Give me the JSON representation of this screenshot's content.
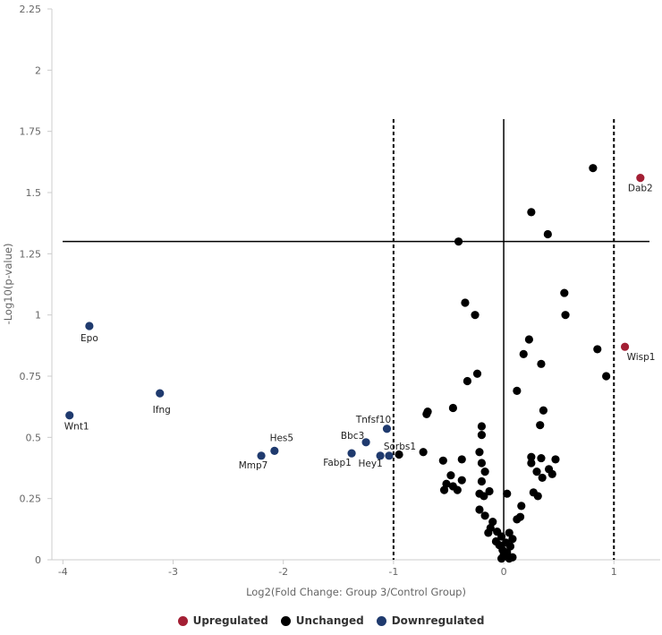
{
  "chart_data": {
    "type": "scatter",
    "title": "",
    "xlabel": "Log2(Fold Change: Group 3/Control Group)",
    "ylabel": "-Log10(p-value)",
    "xlim": [
      -4.1,
      1.42
    ],
    "ylim": [
      0,
      2.25
    ],
    "x_ticks": [
      -4,
      -3,
      -2,
      -1,
      0,
      1
    ],
    "y_ticks": [
      0,
      0.25,
      0.5,
      0.75,
      1,
      1.25,
      1.5,
      1.75,
      2,
      2.25
    ],
    "x_tick_labels": [
      "-4",
      "-3",
      "-2",
      "-1",
      "0",
      "1"
    ],
    "y_tick_labels": [
      "0",
      "0.25",
      "0.5",
      "0.75",
      "1",
      "1.25",
      "1.5",
      "1.75",
      "2",
      "2.25"
    ],
    "threshold_lines": {
      "fold_change_dashed": [
        -1,
        1
      ],
      "zero_solid": 0,
      "p_value_solid": 1.3
    },
    "grid": false,
    "legend_position": "bottom",
    "colors": {
      "Upregulated": "#a31f34",
      "Unchanged": "#000000",
      "Downregulated": "#1f3a6e"
    },
    "legend": [
      "Upregulated",
      "Unchanged",
      "Downregulated"
    ],
    "series": [
      {
        "name": "Upregulated",
        "points": [
          {
            "x": 1.24,
            "y": 1.56,
            "label": "Dab2"
          },
          {
            "x": 1.1,
            "y": 0.87,
            "label": "Wisp1"
          }
        ]
      },
      {
        "name": "Downregulated",
        "points": [
          {
            "x": -3.76,
            "y": 0.955,
            "label": "Epo"
          },
          {
            "x": -3.94,
            "y": 0.59,
            "label": "Wnt1"
          },
          {
            "x": -3.12,
            "y": 0.68,
            "label": "Ifng"
          },
          {
            "x": -2.08,
            "y": 0.445,
            "label": "Hes5"
          },
          {
            "x": -2.2,
            "y": 0.425,
            "label": "Mmp7"
          },
          {
            "x": -1.06,
            "y": 0.535,
            "label": "Tnfsf10"
          },
          {
            "x": -1.25,
            "y": 0.48,
            "label": "Bbc3"
          },
          {
            "x": -1.38,
            "y": 0.435,
            "label": "Fabp1"
          },
          {
            "x": -1.12,
            "y": 0.425,
            "label": "Hey1"
          },
          {
            "x": -1.04,
            "y": 0.425,
            "label": "Sorbs1"
          }
        ]
      },
      {
        "name": "Unchanged",
        "points": [
          {
            "x": 0.81,
            "y": 1.6
          },
          {
            "x": 0.25,
            "y": 1.42
          },
          {
            "x": 0.4,
            "y": 1.33
          },
          {
            "x": -0.41,
            "y": 1.3
          },
          {
            "x": 0.55,
            "y": 1.09
          },
          {
            "x": -0.35,
            "y": 1.05
          },
          {
            "x": 0.56,
            "y": 1.0
          },
          {
            "x": -0.26,
            "y": 1.0
          },
          {
            "x": 0.23,
            "y": 0.9
          },
          {
            "x": 0.85,
            "y": 0.86
          },
          {
            "x": 0.18,
            "y": 0.84
          },
          {
            "x": 0.34,
            "y": 0.8
          },
          {
            "x": -0.24,
            "y": 0.76
          },
          {
            "x": 0.93,
            "y": 0.75
          },
          {
            "x": -0.33,
            "y": 0.73
          },
          {
            "x": 0.12,
            "y": 0.69
          },
          {
            "x": -0.46,
            "y": 0.62
          },
          {
            "x": 0.36,
            "y": 0.61
          },
          {
            "x": -0.69,
            "y": 0.605
          },
          {
            "x": -0.7,
            "y": 0.595
          },
          {
            "x": 0.33,
            "y": 0.55
          },
          {
            "x": -0.2,
            "y": 0.545
          },
          {
            "x": -0.2,
            "y": 0.51
          },
          {
            "x": -0.95,
            "y": 0.43
          },
          {
            "x": -0.73,
            "y": 0.44
          },
          {
            "x": -0.22,
            "y": 0.44
          },
          {
            "x": 0.25,
            "y": 0.42
          },
          {
            "x": 0.34,
            "y": 0.415
          },
          {
            "x": 0.47,
            "y": 0.41
          },
          {
            "x": -0.38,
            "y": 0.41
          },
          {
            "x": -0.55,
            "y": 0.405
          },
          {
            "x": -0.2,
            "y": 0.395
          },
          {
            "x": 0.25,
            "y": 0.395
          },
          {
            "x": 0.41,
            "y": 0.37
          },
          {
            "x": -0.17,
            "y": 0.36
          },
          {
            "x": 0.3,
            "y": 0.36
          },
          {
            "x": 0.44,
            "y": 0.35
          },
          {
            "x": -0.48,
            "y": 0.345
          },
          {
            "x": 0.35,
            "y": 0.335
          },
          {
            "x": -0.38,
            "y": 0.325
          },
          {
            "x": -0.2,
            "y": 0.32
          },
          {
            "x": -0.52,
            "y": 0.31
          },
          {
            "x": -0.46,
            "y": 0.3
          },
          {
            "x": -0.42,
            "y": 0.285
          },
          {
            "x": -0.54,
            "y": 0.285
          },
          {
            "x": -0.13,
            "y": 0.28
          },
          {
            "x": -0.22,
            "y": 0.27
          },
          {
            "x": 0.27,
            "y": 0.275
          },
          {
            "x": 0.03,
            "y": 0.27
          },
          {
            "x": -0.18,
            "y": 0.26
          },
          {
            "x": 0.31,
            "y": 0.26
          },
          {
            "x": 0.16,
            "y": 0.22
          },
          {
            "x": -0.22,
            "y": 0.205
          },
          {
            "x": -0.17,
            "y": 0.18
          },
          {
            "x": 0.15,
            "y": 0.175
          },
          {
            "x": 0.12,
            "y": 0.165
          },
          {
            "x": -0.1,
            "y": 0.155
          },
          {
            "x": -0.12,
            "y": 0.13
          },
          {
            "x": -0.06,
            "y": 0.115
          },
          {
            "x": -0.14,
            "y": 0.11
          },
          {
            "x": 0.05,
            "y": 0.11
          },
          {
            "x": -0.02,
            "y": 0.095
          },
          {
            "x": 0.08,
            "y": 0.085
          },
          {
            "x": -0.07,
            "y": 0.075
          },
          {
            "x": 0.02,
            "y": 0.07
          },
          {
            "x": -0.04,
            "y": 0.06
          },
          {
            "x": 0.06,
            "y": 0.055
          },
          {
            "x": -0.01,
            "y": 0.04
          },
          {
            "x": 0.03,
            "y": 0.03
          },
          {
            "x": 0.0,
            "y": 0.02
          },
          {
            "x": 0.08,
            "y": 0.01
          },
          {
            "x": -0.02,
            "y": 0.005
          },
          {
            "x": 0.05,
            "y": 0.005
          }
        ]
      }
    ]
  }
}
